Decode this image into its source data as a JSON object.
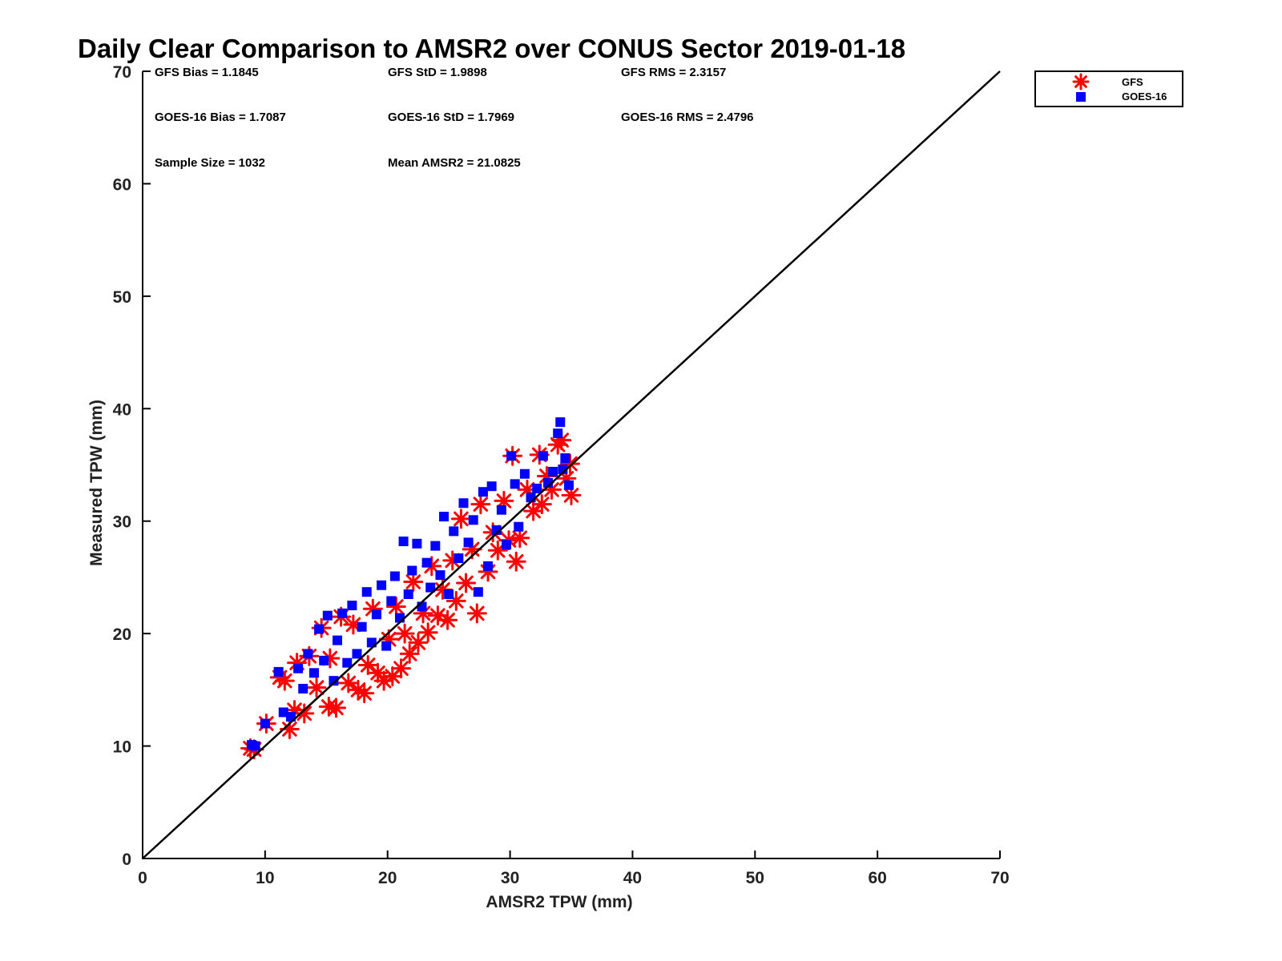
{
  "chart_data": {
    "type": "scatter",
    "title": "Daily Clear Comparison to AMSR2 over CONUS Sector 2019-01-18",
    "xlabel": "AMSR2 TPW (mm)",
    "ylabel": "Measured TPW (mm)",
    "xlim": [
      0,
      70
    ],
    "ylim": [
      0,
      70
    ],
    "xticks": [
      "0",
      "10",
      "20",
      "30",
      "40",
      "50",
      "60",
      "70"
    ],
    "yticks": [
      "0",
      "10",
      "20",
      "30",
      "40",
      "50",
      "60",
      "70"
    ],
    "grid": false,
    "legend_position": "top-right, outside plot",
    "reference_line": {
      "from": [
        0,
        0
      ],
      "to": [
        70,
        70
      ]
    },
    "stats": [
      [
        "GFS Bias = 1.1845",
        "GFS StD = 1.9898",
        "GFS RMS = 2.3157"
      ],
      [
        "GOES-16 Bias = 1.7087",
        "GOES-16 StD = 1.7969",
        "GOES-16 RMS = 2.4796"
      ],
      [
        "Sample Size = 1032",
        "Mean AMSR2 = 21.0825"
      ]
    ],
    "series": [
      {
        "name": "GFS",
        "marker": "asterisk",
        "color": "#ff0000",
        "points": [
          [
            8.8,
            9.8
          ],
          [
            9.1,
            9.7
          ],
          [
            10.1,
            12.0
          ],
          [
            11.2,
            16.1
          ],
          [
            11.6,
            15.8
          ],
          [
            12.0,
            11.5
          ],
          [
            12.4,
            13.2
          ],
          [
            12.6,
            17.4
          ],
          [
            13.2,
            12.9
          ],
          [
            13.6,
            18.0
          ],
          [
            14.2,
            15.2
          ],
          [
            14.6,
            20.5
          ],
          [
            15.2,
            13.5
          ],
          [
            15.8,
            13.4
          ],
          [
            15.3,
            17.8
          ],
          [
            16.2,
            21.5
          ],
          [
            16.8,
            15.6
          ],
          [
            17.2,
            20.8
          ],
          [
            17.6,
            15.0
          ],
          [
            18.1,
            14.7
          ],
          [
            18.4,
            17.2
          ],
          [
            18.8,
            22.2
          ],
          [
            19.2,
            16.5
          ],
          [
            19.7,
            15.8
          ],
          [
            20.1,
            19.5
          ],
          [
            20.4,
            16.2
          ],
          [
            20.7,
            22.4
          ],
          [
            21.1,
            16.9
          ],
          [
            21.4,
            20.0
          ],
          [
            21.8,
            18.2
          ],
          [
            22.1,
            24.6
          ],
          [
            22.5,
            19.2
          ],
          [
            22.9,
            21.8
          ],
          [
            23.3,
            20.1
          ],
          [
            23.6,
            26.0
          ],
          [
            24.1,
            21.6
          ],
          [
            24.5,
            23.9
          ],
          [
            24.9,
            21.2
          ],
          [
            25.3,
            26.5
          ],
          [
            25.6,
            22.9
          ],
          [
            26.0,
            30.2
          ],
          [
            26.4,
            24.5
          ],
          [
            26.9,
            27.5
          ],
          [
            27.3,
            21.8
          ],
          [
            27.6,
            31.5
          ],
          [
            28.2,
            25.5
          ],
          [
            28.6,
            29.0
          ],
          [
            29.0,
            27.4
          ],
          [
            29.5,
            31.8
          ],
          [
            29.9,
            28.3
          ],
          [
            30.2,
            35.8
          ],
          [
            30.5,
            26.4
          ],
          [
            30.8,
            28.5
          ],
          [
            31.4,
            32.8
          ],
          [
            31.9,
            30.9
          ],
          [
            32.4,
            35.9
          ],
          [
            32.6,
            31.5
          ],
          [
            33.0,
            34.0
          ],
          [
            33.4,
            32.8
          ],
          [
            33.9,
            36.8
          ],
          [
            34.2,
            37.2
          ],
          [
            34.6,
            33.8
          ],
          [
            35.0,
            32.3
          ],
          [
            34.9,
            35.1
          ]
        ]
      },
      {
        "name": "GOES-16",
        "marker": "square",
        "color": "#0000ff",
        "points": [
          [
            8.9,
            10.1
          ],
          [
            9.2,
            10.0
          ],
          [
            10.0,
            12.0
          ],
          [
            11.1,
            16.6
          ],
          [
            11.5,
            13.0
          ],
          [
            12.1,
            12.6
          ],
          [
            12.7,
            16.9
          ],
          [
            13.1,
            15.1
          ],
          [
            13.5,
            18.2
          ],
          [
            14.0,
            16.5
          ],
          [
            14.4,
            20.4
          ],
          [
            14.8,
            17.6
          ],
          [
            15.1,
            21.6
          ],
          [
            15.6,
            15.8
          ],
          [
            15.9,
            19.4
          ],
          [
            16.3,
            21.8
          ],
          [
            16.7,
            17.4
          ],
          [
            17.1,
            22.5
          ],
          [
            17.5,
            18.2
          ],
          [
            17.9,
            20.6
          ],
          [
            18.3,
            23.7
          ],
          [
            18.7,
            19.2
          ],
          [
            19.1,
            21.7
          ],
          [
            19.5,
            24.3
          ],
          [
            19.9,
            18.9
          ],
          [
            20.3,
            22.9
          ],
          [
            20.6,
            25.1
          ],
          [
            21.0,
            21.4
          ],
          [
            21.3,
            28.2
          ],
          [
            21.7,
            23.5
          ],
          [
            22.0,
            25.6
          ],
          [
            22.4,
            28.0
          ],
          [
            22.8,
            22.4
          ],
          [
            23.2,
            26.3
          ],
          [
            23.5,
            24.1
          ],
          [
            23.9,
            27.8
          ],
          [
            24.3,
            25.2
          ],
          [
            24.6,
            30.4
          ],
          [
            25.0,
            23.5
          ],
          [
            25.4,
            29.1
          ],
          [
            25.8,
            26.7
          ],
          [
            26.2,
            31.6
          ],
          [
            26.6,
            28.1
          ],
          [
            27.0,
            30.1
          ],
          [
            27.4,
            23.7
          ],
          [
            27.8,
            32.6
          ],
          [
            28.2,
            26.0
          ],
          [
            28.5,
            33.1
          ],
          [
            28.9,
            29.2
          ],
          [
            29.3,
            31.0
          ],
          [
            29.7,
            27.9
          ],
          [
            30.1,
            35.8
          ],
          [
            30.4,
            33.3
          ],
          [
            30.7,
            29.5
          ],
          [
            31.2,
            34.2
          ],
          [
            31.7,
            32.1
          ],
          [
            32.2,
            32.9
          ],
          [
            32.7,
            35.8
          ],
          [
            33.1,
            33.4
          ],
          [
            33.5,
            34.4
          ],
          [
            33.9,
            37.8
          ],
          [
            34.1,
            38.8
          ],
          [
            34.5,
            35.6
          ],
          [
            34.8,
            33.2
          ],
          [
            34.3,
            34.6
          ]
        ]
      }
    ]
  }
}
